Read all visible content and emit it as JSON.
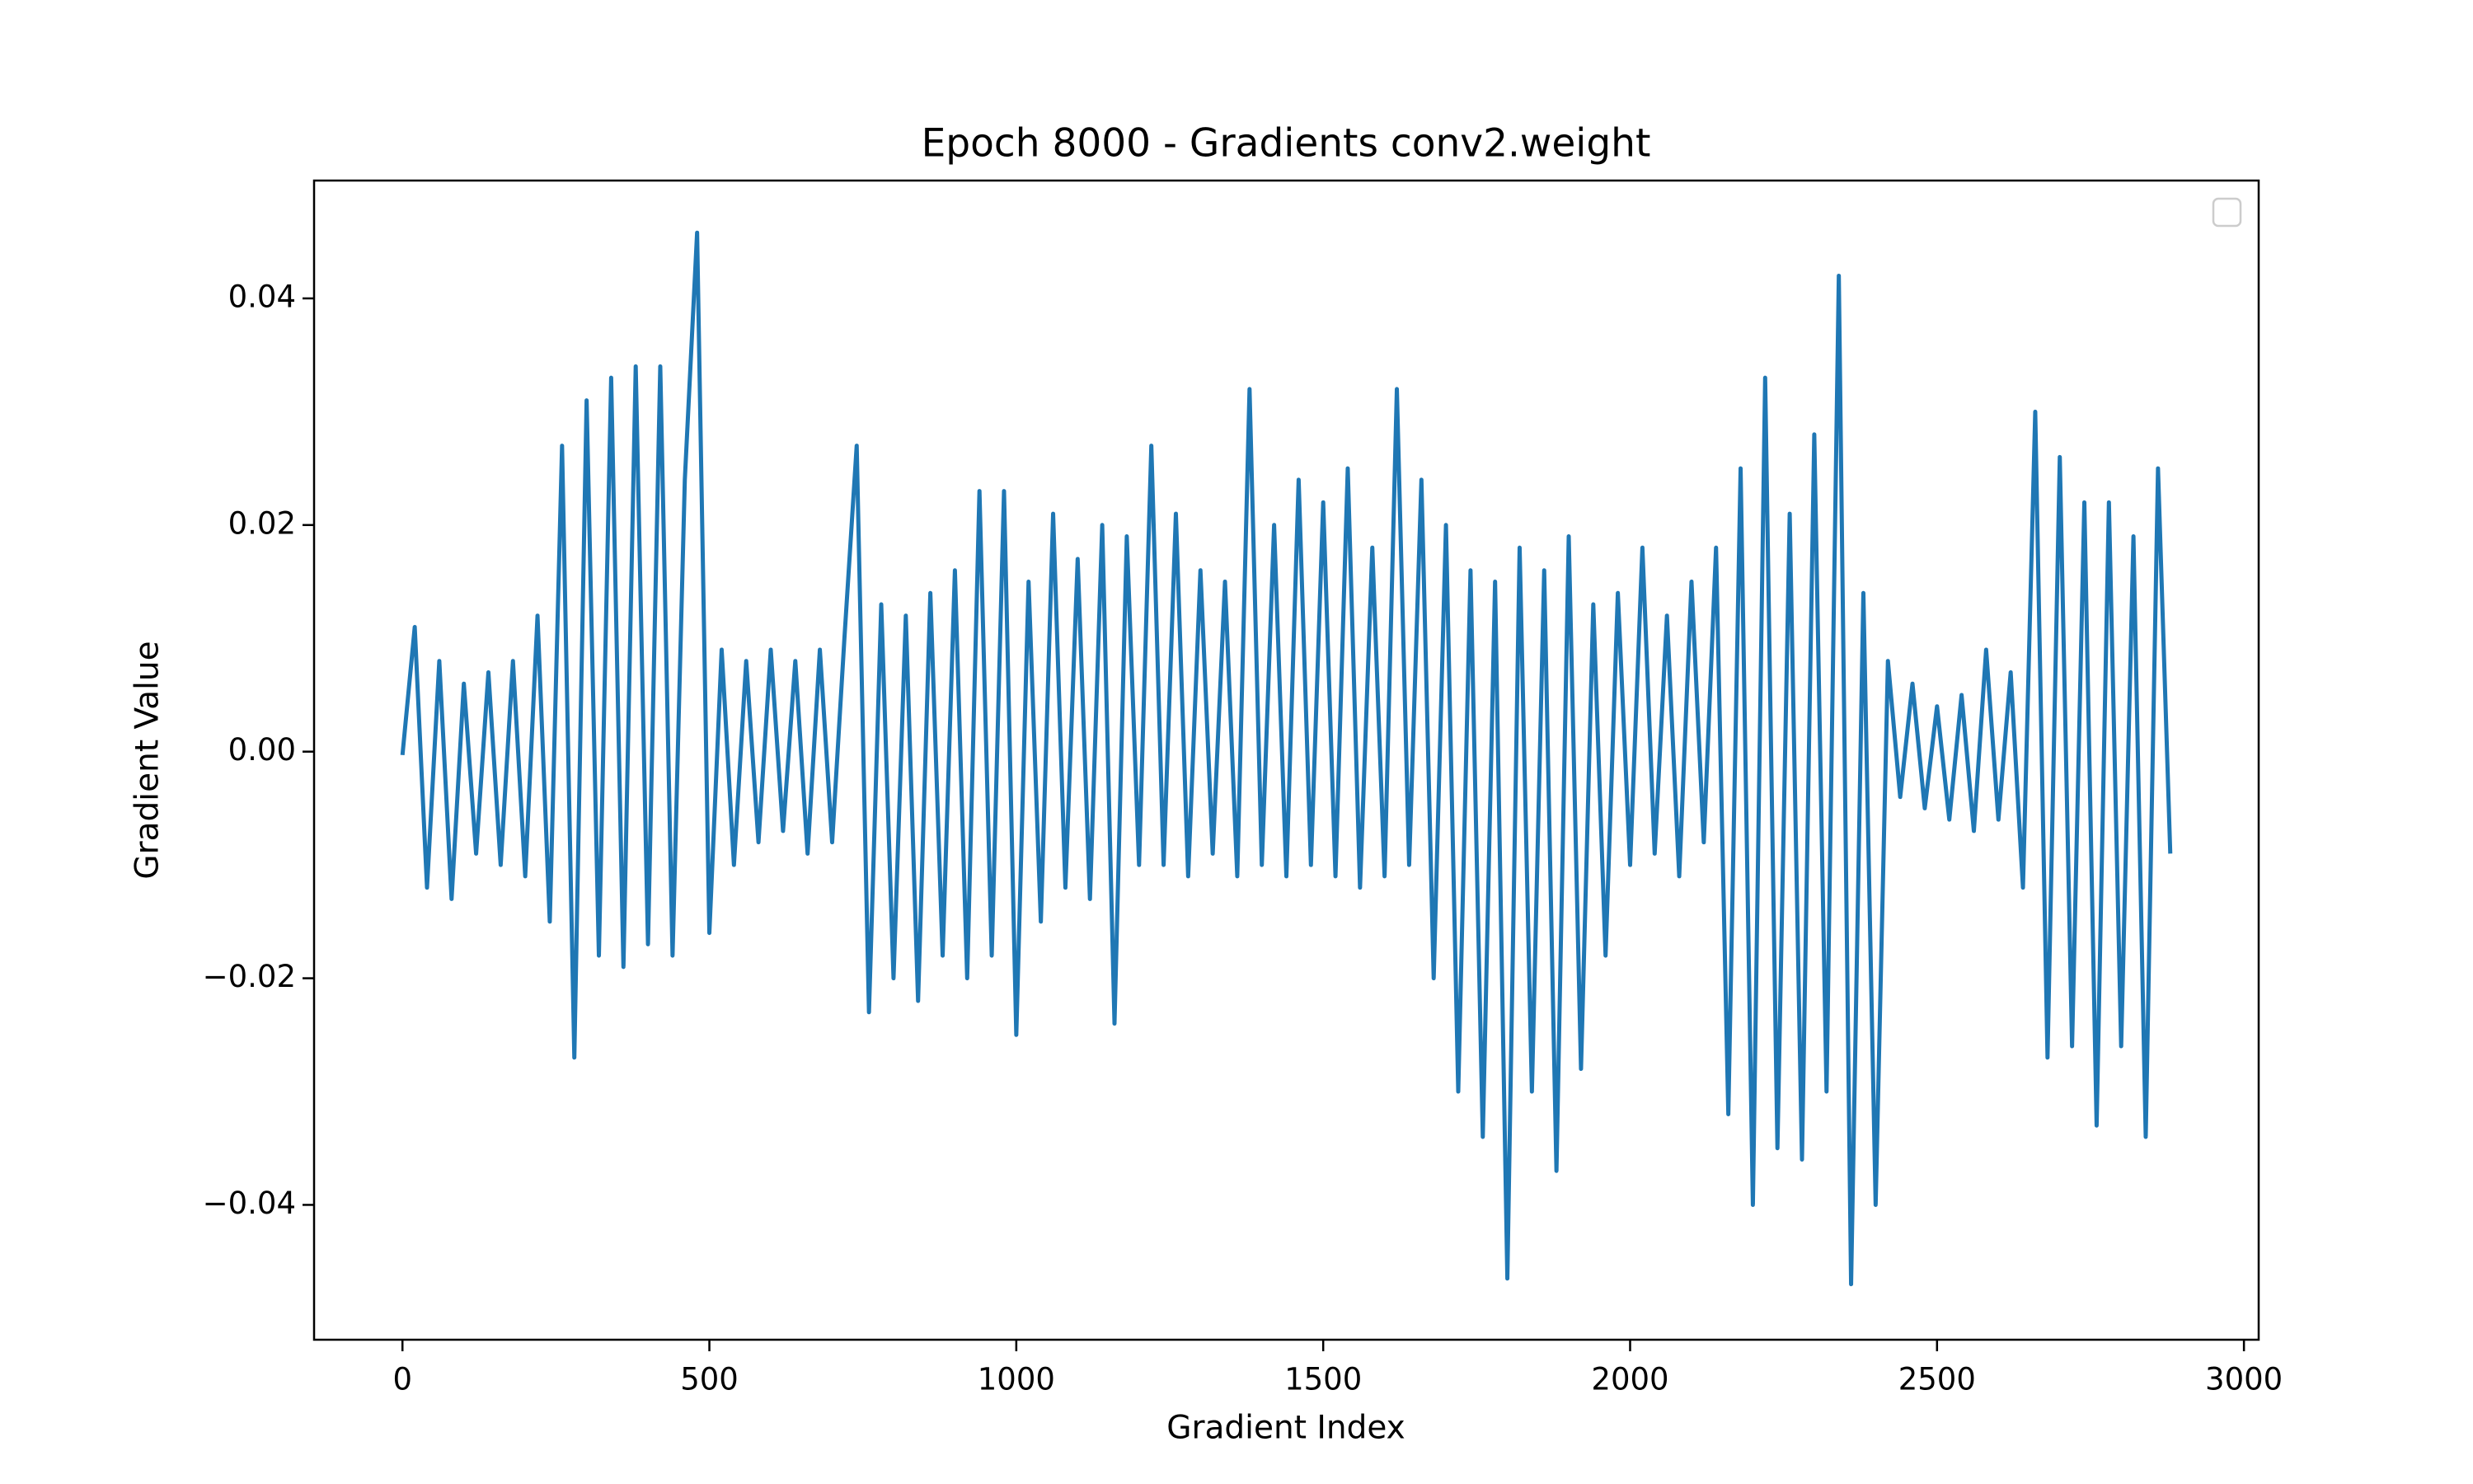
{
  "chart_data": {
    "type": "line",
    "title": "Epoch 8000 - Gradients conv2.weight",
    "xlabel": "Gradient Index",
    "ylabel": "Gradient Value",
    "color": "#1f77b4",
    "x": [
      0,
      20,
      40,
      60,
      80,
      100,
      120,
      140,
      160,
      180,
      200,
      220,
      240,
      260,
      280,
      300,
      320,
      340,
      360,
      380,
      400,
      420,
      440,
      460,
      480,
      500,
      520,
      540,
      560,
      580,
      600,
      620,
      640,
      660,
      680,
      700,
      720,
      740,
      760,
      780,
      800,
      820,
      840,
      860,
      880,
      900,
      920,
      940,
      960,
      980,
      1000,
      1020,
      1040,
      1060,
      1080,
      1100,
      1120,
      1140,
      1160,
      1180,
      1200,
      1220,
      1240,
      1260,
      1280,
      1300,
      1320,
      1340,
      1360,
      1380,
      1400,
      1420,
      1440,
      1460,
      1480,
      1500,
      1520,
      1540,
      1560,
      1580,
      1600,
      1620,
      1640,
      1660,
      1680,
      1700,
      1720,
      1740,
      1760,
      1780,
      1800,
      1820,
      1840,
      1860,
      1880,
      1900,
      1920,
      1940,
      1960,
      1980,
      2000,
      2020,
      2040,
      2060,
      2080,
      2100,
      2120,
      2140,
      2160,
      2180,
      2200,
      2220,
      2240,
      2260,
      2280,
      2300,
      2320,
      2340,
      2360,
      2380,
      2400,
      2420,
      2440,
      2460,
      2480,
      2500,
      2520,
      2540,
      2560,
      2580,
      2600,
      2620,
      2640,
      2660,
      2680,
      2700,
      2720,
      2740,
      2760,
      2780,
      2800,
      2820,
      2840,
      2860,
      2880
    ],
    "values": [
      -0.0003,
      0.011,
      -0.012,
      0.008,
      -0.013,
      0.006,
      -0.009,
      0.007,
      -0.01,
      0.008,
      -0.011,
      0.012,
      -0.015,
      0.027,
      -0.027,
      0.031,
      -0.018,
      0.033,
      -0.019,
      0.034,
      -0.017,
      0.034,
      -0.018,
      0.024,
      0.0458,
      -0.016,
      0.009,
      -0.01,
      0.008,
      -0.008,
      0.009,
      -0.007,
      0.008,
      -0.009,
      0.009,
      -0.008,
      0.01,
      0.027,
      -0.023,
      0.013,
      -0.02,
      0.012,
      -0.022,
      0.014,
      -0.018,
      0.016,
      -0.02,
      0.023,
      -0.018,
      0.023,
      -0.025,
      0.015,
      -0.015,
      0.021,
      -0.012,
      0.017,
      -0.013,
      0.02,
      -0.024,
      0.019,
      -0.01,
      0.027,
      -0.01,
      0.021,
      -0.011,
      0.016,
      -0.009,
      0.015,
      -0.011,
      0.032,
      -0.01,
      0.02,
      -0.011,
      0.024,
      -0.01,
      0.022,
      -0.011,
      0.025,
      -0.012,
      0.018,
      -0.011,
      0.032,
      -0.01,
      0.024,
      -0.02,
      0.02,
      -0.03,
      0.016,
      -0.034,
      0.015,
      -0.0465,
      0.018,
      -0.03,
      0.016,
      -0.037,
      0.019,
      -0.028,
      0.013,
      -0.018,
      0.014,
      -0.01,
      0.018,
      -0.009,
      0.012,
      -0.011,
      0.015,
      -0.008,
      0.018,
      -0.032,
      0.025,
      -0.04,
      0.033,
      -0.035,
      0.021,
      -0.036,
      0.028,
      -0.03,
      0.042,
      -0.047,
      0.014,
      -0.04,
      0.008,
      -0.004,
      0.006,
      -0.005,
      0.004,
      -0.006,
      0.005,
      -0.007,
      0.009,
      -0.006,
      0.007,
      -0.012,
      0.03,
      -0.027,
      0.026,
      -0.026,
      0.022,
      -0.033,
      0.022,
      -0.026,
      0.019,
      -0.034,
      0.025,
      -0.009
    ],
    "xlim": [
      -144,
      3024
    ],
    "xticks": [
      0,
      500,
      1000,
      1500,
      2000,
      2500,
      3000
    ],
    "ylim": [
      -0.0519,
      0.0504
    ],
    "yticks": [
      {
        "value": -0.04,
        "label": "−0.04"
      },
      {
        "value": -0.02,
        "label": "−0.02"
      },
      {
        "value": 0,
        "label": "0.00"
      },
      0.02,
      0.04
    ]
  }
}
